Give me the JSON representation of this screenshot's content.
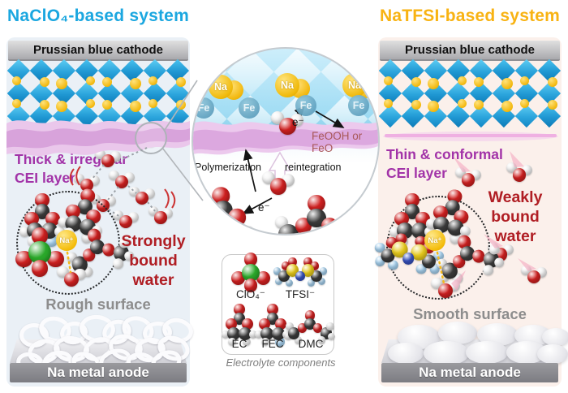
{
  "left": {
    "title": "NaClO₄-based system",
    "cathode": "Prussian blue cathode",
    "cei_line1": "Thick & irregular",
    "cei_line2": "CEI layer",
    "water_line1": "Strongly",
    "water_line2": "bound",
    "water_line3": "water",
    "surface": "Rough surface",
    "anode": "Na metal anode",
    "na_ion": "Na⁺"
  },
  "right": {
    "title": "NaTFSI-based system",
    "cathode": "Prussian blue cathode",
    "cei_line1": "Thin & conformal",
    "cei_line2": "CEI layer",
    "water_line1": "Weakly",
    "water_line2": "bound",
    "water_line3": "water",
    "surface": "Smooth surface",
    "anode": "Na metal anode",
    "na_ion": "Na⁺"
  },
  "zoom": {
    "na": "Na",
    "fe": "Fe",
    "electron": "e⁻",
    "product": "FeOOH or FeO",
    "polymerization": "Polymerization",
    "reintegration": "reintegration"
  },
  "legend": {
    "clo4": "ClO₄⁻",
    "tfsi": "TFSI⁻",
    "ec": "EC",
    "fec": "FEC",
    "dmc": "DMC",
    "caption": "Electrolyte components"
  },
  "colors": {
    "left_title": "#1BA7E0",
    "right_title": "#F8B313",
    "cei_text": "#A233A8",
    "bound_water_text": "#B01E24",
    "surface_text": "#8D8D8D",
    "product_text": "#A85858",
    "crystal_blue": "#2BA4DC",
    "na_gold": "#F2B70C",
    "cei_pink": "#D69FD9"
  }
}
